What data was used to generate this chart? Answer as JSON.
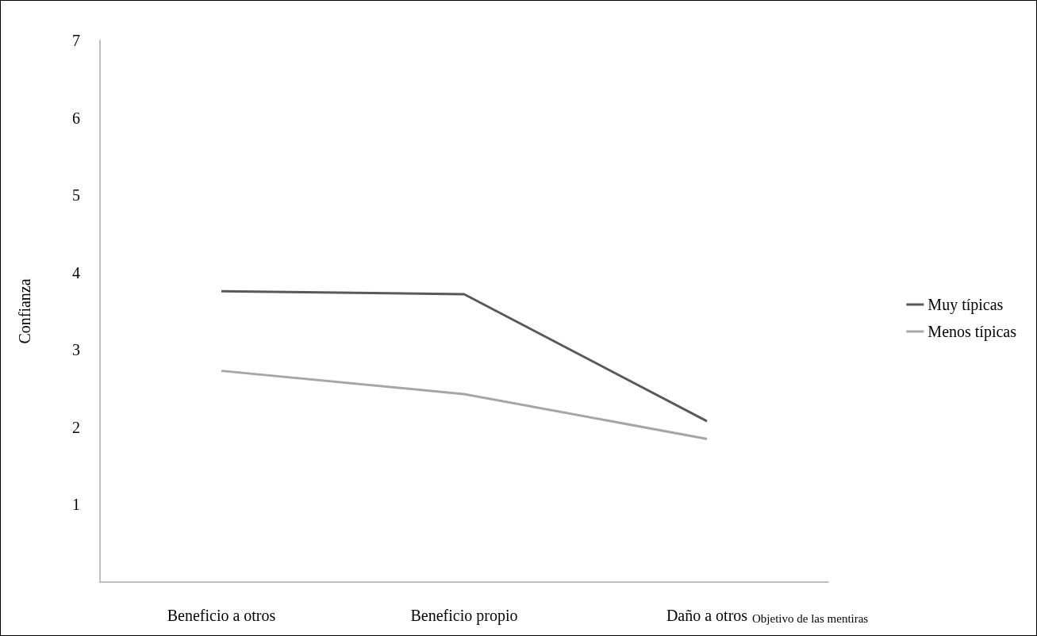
{
  "chart_data": {
    "type": "line",
    "xlabel": "Objetivo de las mentiras",
    "ylabel": "Confianza",
    "categories": [
      "Beneficio a otros",
      "Beneficio propio",
      "Daño a otros"
    ],
    "series": [
      {
        "name": "Muy típicas",
        "color": "#595959",
        "values": [
          3.76,
          3.72,
          2.08
        ]
      },
      {
        "name": "Menos típicas",
        "color": "#a6a6a6",
        "values": [
          2.73,
          2.43,
          1.85
        ]
      }
    ],
    "ylim": [
      0,
      7
    ],
    "yticks": [
      1,
      2,
      3,
      4,
      5,
      6,
      7
    ],
    "grid": false,
    "legend": "right",
    "marker": "none",
    "line_style": "solid"
  }
}
